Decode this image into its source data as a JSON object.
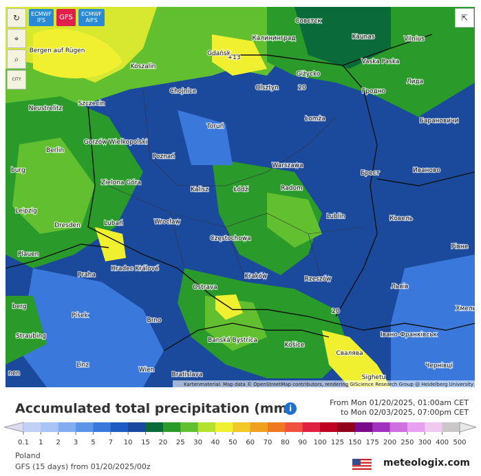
{
  "toolbar": {
    "models": [
      "ECMWF IFS",
      "GFS",
      "ECMWF AIFS"
    ],
    "city": "CITY"
  },
  "map": {
    "cities": [
      "Совєтск",
      "Kaunas",
      "Vilnius",
      "Калининград",
      "Gdańsk",
      "Bergen auf Rügen",
      "Koszalin",
      "Vaska Paska",
      "Giżycko",
      "Лида",
      "Olsztyn",
      "Гродно",
      "Chojnice",
      "Neustrelitz",
      "Szczecin",
      "Łomża",
      "Барановичи",
      "Toruń",
      "Gorzów Wielkopolski",
      "Berlin",
      "Poznań",
      "Warszawa",
      "Брест",
      "Иваново",
      "Zielona Góra",
      "Kalisz",
      "Łódź",
      "Radom",
      "Leipzig",
      "Lublin",
      "Ковель",
      "Dresden",
      "Lubań",
      "Wrocław",
      "Częstochowa",
      "Рівне",
      "Plauen",
      "Hradec Králové",
      "Praha",
      "Ostrava",
      "Kraków",
      "Rzeszów",
      "Львів",
      "Písek",
      "Brno",
      "Хмельни",
      "Straubing",
      "Banská Bystrica",
      "Košice",
      "Івано-Франківськ",
      "Свалява",
      "Linz",
      "Wien",
      "Bratislava",
      "Чернівці",
      "Sighetu",
      "berg",
      "burg",
      "nen",
      "+13",
      "20",
      "20"
    ],
    "attribution": "Kartenmaterial: Map data © OpenStreetMap contributors, rendering GIScience Research Group @ Heidelberg University"
  },
  "legend": {
    "title": "Accumulated total precipitation (mm)",
    "from": "From Mon 01/20/2025, 01:00am CET",
    "to": "to Mon 02/03/2025, 07:00pm CET",
    "labels": [
      "0.1",
      "1",
      "2",
      "3",
      "5",
      "7",
      "10",
      "15",
      "20",
      "25",
      "30",
      "40",
      "50",
      "60",
      "70",
      "80",
      "90",
      "100",
      "125",
      "150",
      "175",
      "200",
      "250",
      "300",
      "400",
      "500"
    ],
    "colors": [
      "#dcdcf0",
      "#c0d0f4",
      "#a8c4f4",
      "#84acf0",
      "#5c94e8",
      "#3a78dc",
      "#1e5cc4",
      "#1848a0",
      "#0a6a3a",
      "#2a9a2a",
      "#60c030",
      "#b4e030",
      "#f0f030",
      "#f0c828",
      "#f0a020",
      "#f07820",
      "#f05040",
      "#e02040",
      "#c00020",
      "#900018",
      "#7a0a8a",
      "#a030c0",
      "#d070e0",
      "#e8a0f0",
      "#f0c8f0",
      "#c8c8c8",
      "#e8e8e8"
    ]
  },
  "footer": {
    "region": "Poland",
    "run": "GFS (15 days) from 01/20/2025/00z",
    "brand": "meteologix.com"
  }
}
